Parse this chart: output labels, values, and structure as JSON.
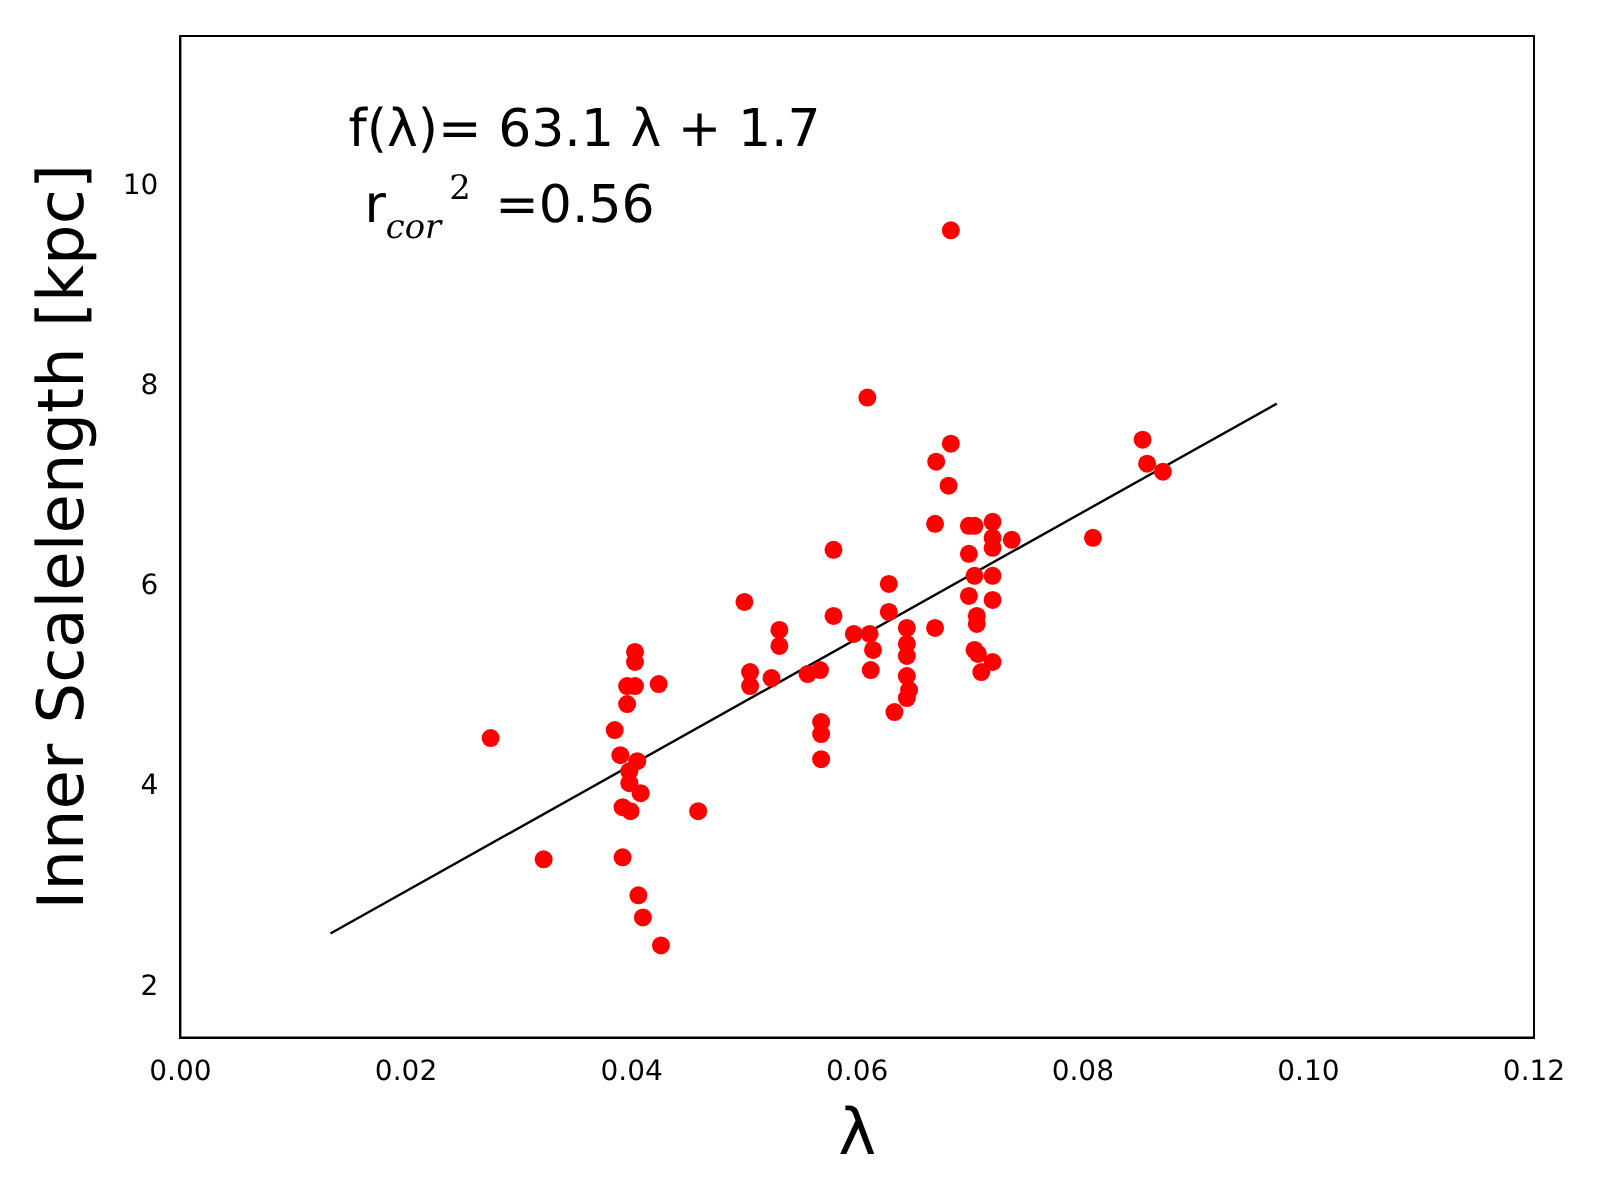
{
  "chart_data": {
    "type": "scatter",
    "xlabel": "λ",
    "ylabel": "Inner Scalelength [kpc]",
    "annotations": [
      "f(λ)= 63.1 λ + 1.7",
      "r$_{cor}$$^{2}$ =0.56"
    ],
    "xlim": [
      0,
      0.12
    ],
    "ylim": [
      1.5,
      11.5
    ],
    "xticks": [
      {
        "value": 0,
        "label": "0.00"
      },
      {
        "value": 0.02,
        "label": "0.02"
      },
      {
        "value": 0.04,
        "label": "0.04"
      },
      {
        "value": 0.06,
        "label": "0.06"
      },
      {
        "value": 0.08,
        "label": "0.08"
      },
      {
        "value": 0.1,
        "label": "0.10"
      },
      {
        "value": 0.12,
        "label": "0.12"
      }
    ],
    "yticks": [
      2,
      4,
      6,
      8,
      10
    ],
    "grid": false,
    "legend": false,
    "marker": "circle",
    "series": [
      {
        "type": "scatter",
        "color": "#ff0000",
        "x": [
          0.0275,
          0.0322,
          0.0385,
          0.039,
          0.0392,
          0.0392,
          0.0396,
          0.0396,
          0.0398,
          0.0398,
          0.0399,
          0.0403,
          0.0403,
          0.0403,
          0.0405,
          0.0408,
          0.0406,
          0.041,
          0.0426,
          0.0424,
          0.0459,
          0.05,
          0.0505,
          0.0505,
          0.0524,
          0.0531,
          0.0531,
          0.0556,
          0.0567,
          0.0568,
          0.0568,
          0.0568,
          0.0579,
          0.0579,
          0.0597,
          0.0609,
          0.0611,
          0.0612,
          0.0614,
          0.0628,
          0.0628,
          0.0633,
          0.0644,
          0.0644,
          0.0644,
          0.0644,
          0.0646,
          0.0644,
          0.067,
          0.0669,
          0.0669,
          0.0683,
          0.0683,
          0.0681,
          0.0699,
          0.0704,
          0.0699,
          0.0699,
          0.0704,
          0.0706,
          0.0704,
          0.0706,
          0.0707,
          0.071,
          0.072,
          0.072,
          0.072,
          0.072,
          0.072,
          0.072,
          0.0737,
          0.0809,
          0.0853,
          0.0857,
          0.0871
        ],
        "values": [
          4.49,
          3.28,
          4.57,
          4.32,
          3.8,
          3.3,
          5.01,
          4.83,
          4.16,
          4.04,
          3.76,
          5.35,
          5.25,
          5.01,
          4.26,
          3.94,
          2.92,
          2.7,
          2.42,
          5.03,
          3.76,
          5.85,
          5.15,
          5.01,
          5.09,
          5.57,
          5.41,
          5.13,
          5.17,
          4.65,
          4.53,
          4.28,
          6.37,
          5.71,
          5.53,
          7.89,
          5.53,
          5.17,
          5.37,
          6.03,
          5.75,
          4.75,
          5.59,
          5.43,
          5.31,
          5.11,
          4.97,
          4.89,
          7.25,
          6.63,
          5.59,
          9.56,
          7.43,
          7.01,
          6.61,
          6.61,
          6.33,
          5.91,
          6.11,
          5.71,
          5.37,
          5.63,
          5.33,
          5.15,
          6.65,
          6.49,
          6.39,
          6.11,
          5.87,
          5.25,
          6.47,
          6.49,
          7.47,
          7.23,
          7.15
        ]
      },
      {
        "type": "line",
        "color": "#000000",
        "marker": "none",
        "x": [
          0.0133,
          0.0972
        ],
        "values": [
          2.54,
          7.83
        ]
      }
    ]
  }
}
